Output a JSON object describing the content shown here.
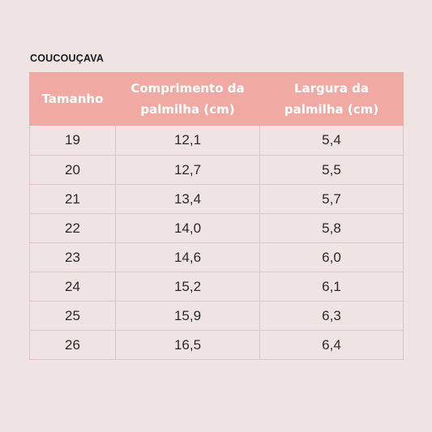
{
  "brand": "COUCOUÇAVA",
  "table": {
    "headers": [
      "Tamanho",
      "Comprimento da palmilha (cm)",
      "Largura da palmilha (cm)"
    ],
    "rows": [
      [
        "19",
        "12,1",
        "5,4"
      ],
      [
        "20",
        "12,7",
        "5,5"
      ],
      [
        "21",
        "13,4",
        "5,7"
      ],
      [
        "22",
        "14,0",
        "5,8"
      ],
      [
        "23",
        "14,6",
        "6,0"
      ],
      [
        "24",
        "15,2",
        "6,1"
      ],
      [
        "25",
        "15,9",
        "6,3"
      ],
      [
        "26",
        "16,5",
        "6,4"
      ]
    ]
  },
  "colors": {
    "background": "#f0e4e2",
    "header_fill": "#f0aaa3",
    "header_text": "#ffffff",
    "grid_line": "#d9c6c4"
  }
}
